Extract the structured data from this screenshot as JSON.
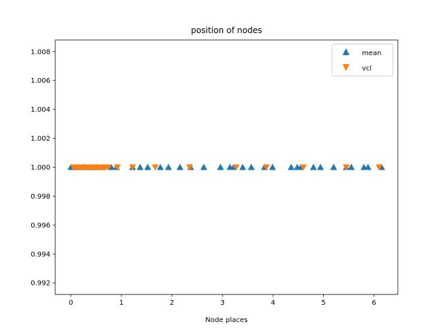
{
  "chart_data": {
    "type": "scatter",
    "title": "position of nodes",
    "xlabel": "Node places",
    "ylabel": "",
    "xlim": [
      -0.31,
      6.47
    ],
    "ylim": [
      0.9912,
      1.0088
    ],
    "xticks": [
      0,
      1,
      2,
      3,
      4,
      5,
      6
    ],
    "xtick_labels": [
      "0",
      "1",
      "2",
      "3",
      "4",
      "5",
      "6"
    ],
    "yticks": [
      0.992,
      0.994,
      0.996,
      0.998,
      1.0,
      1.002,
      1.004,
      1.006,
      1.008
    ],
    "ytick_labels": [
      "0.992",
      "0.994",
      "0.996",
      "0.998",
      "1.000",
      "1.002",
      "1.004",
      "1.006",
      "1.008"
    ],
    "grid": false,
    "legend_position": "top-right",
    "series": [
      {
        "name": "mean",
        "marker": "triangle-up",
        "color": "#1f77b4",
        "x": [
          0.0,
          0.13,
          0.27,
          0.38,
          0.5,
          0.62,
          0.8,
          0.9,
          1.22,
          1.37,
          1.52,
          1.77,
          1.93,
          2.16,
          2.37,
          2.63,
          2.96,
          3.15,
          3.22,
          3.4,
          3.57,
          3.83,
          3.99,
          4.36,
          4.48,
          4.55,
          4.8,
          4.94,
          5.2,
          5.45,
          5.55,
          5.8,
          5.88,
          6.15
        ],
        "y": [
          1.0,
          1.0,
          1.0,
          1.0,
          1.0,
          1.0,
          1.0,
          1.0,
          1.0,
          1.0,
          1.0,
          1.0,
          1.0,
          1.0,
          1.0,
          1.0,
          1.0,
          1.0,
          1.0,
          1.0,
          1.0,
          1.0,
          1.0,
          1.0,
          1.0,
          1.0,
          1.0,
          1.0,
          1.0,
          1.0,
          1.0,
          1.0,
          1.0,
          1.0
        ]
      },
      {
        "name": "vcl",
        "marker": "triangle-down",
        "color": "#ff7f0e",
        "x": [
          0.05,
          0.1,
          0.14,
          0.17,
          0.2,
          0.23,
          0.26,
          0.3,
          0.34,
          0.38,
          0.42,
          0.46,
          0.5,
          0.54,
          0.58,
          0.62,
          0.66,
          0.7,
          0.74,
          0.92,
          1.22,
          1.67,
          2.35,
          3.27,
          3.87,
          4.6,
          5.45,
          6.1
        ],
        "y": [
          1.0,
          1.0,
          1.0,
          1.0,
          1.0,
          1.0,
          1.0,
          1.0,
          1.0,
          1.0,
          1.0,
          1.0,
          1.0,
          1.0,
          1.0,
          1.0,
          1.0,
          1.0,
          1.0,
          1.0,
          1.0,
          1.0,
          1.0,
          1.0,
          1.0,
          1.0,
          1.0,
          1.0
        ]
      }
    ]
  }
}
